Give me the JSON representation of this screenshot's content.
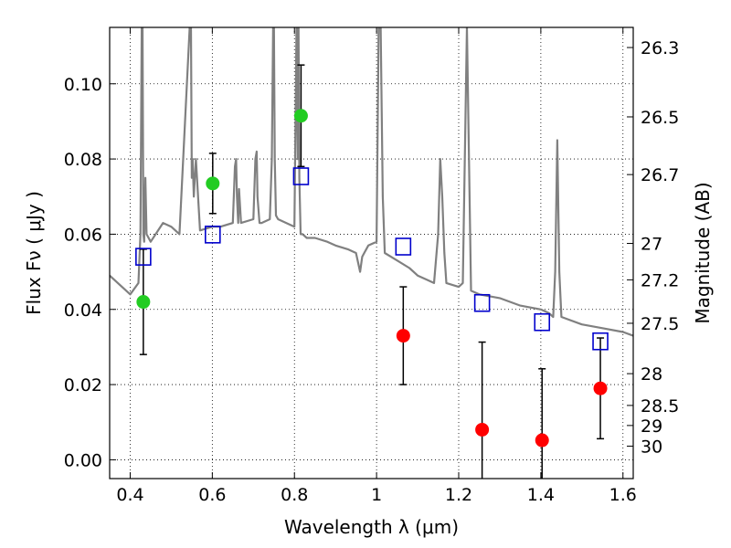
{
  "chart_data": {
    "type": "scatter",
    "xlabel": "Wavelength  λ (μm)",
    "ylabel": "Flux  Fν  ( μJy )",
    "ylabel_right": "Magnitude (AB)",
    "xlim": [
      0.35,
      1.625
    ],
    "ylim": [
      -0.005,
      0.115
    ],
    "grid": true,
    "x_ticks": [
      0.4,
      0.6,
      0.8,
      1.0,
      1.2,
      1.4,
      1.6
    ],
    "x_tick_labels": [
      "0.4",
      "0.6",
      "0.8",
      "1",
      "1.2",
      "1.4",
      "1.6"
    ],
    "y_ticks": [
      0.0,
      0.02,
      0.04,
      0.06,
      0.08,
      0.1
    ],
    "y_tick_labels": [
      "0.00",
      "0.02",
      "0.04",
      "0.06",
      "0.08",
      "0.10"
    ],
    "right_ticks": [
      26.3,
      26.5,
      26.7,
      27,
      27.2,
      27.5,
      28,
      28.5,
      29,
      30
    ],
    "right_tick_labels": [
      "26.3",
      "26.5",
      "26.7",
      "27",
      "27.2",
      "27.5",
      "28",
      "28.5",
      "29",
      "30"
    ],
    "series": [
      {
        "name": "model-spectrum",
        "kind": "line",
        "color": "#808080",
        "x": [
          0.35,
          0.38,
          0.4,
          0.42,
          0.425,
          0.428,
          0.43,
          0.432,
          0.434,
          0.437,
          0.44,
          0.45,
          0.48,
          0.5,
          0.52,
          0.545,
          0.548,
          0.55,
          0.552,
          0.555,
          0.56,
          0.57,
          0.6,
          0.62,
          0.65,
          0.655,
          0.658,
          0.66,
          0.663,
          0.665,
          0.67,
          0.7,
          0.705,
          0.708,
          0.71,
          0.715,
          0.72,
          0.74,
          0.745,
          0.748,
          0.75,
          0.752,
          0.755,
          0.76,
          0.78,
          0.8,
          0.805,
          0.808,
          0.81,
          0.812,
          0.815,
          0.82,
          0.83,
          0.85,
          0.88,
          0.9,
          0.93,
          0.95,
          0.96,
          0.965,
          0.97,
          0.98,
          1.0,
          1.005,
          1.01,
          1.015,
          1.02,
          1.05,
          1.08,
          1.1,
          1.12,
          1.14,
          1.15,
          1.155,
          1.16,
          1.165,
          1.17,
          1.2,
          1.21,
          1.22,
          1.23,
          1.25,
          1.3,
          1.35,
          1.4,
          1.42,
          1.43,
          1.435,
          1.44,
          1.445,
          1.45,
          1.5,
          1.55,
          1.6,
          1.625
        ],
        "y": [
          0.049,
          0.046,
          0.044,
          0.047,
          0.06,
          0.115,
          0.115,
          0.06,
          0.058,
          0.075,
          0.06,
          0.058,
          0.063,
          0.062,
          0.06,
          0.115,
          0.115,
          0.075,
          0.08,
          0.07,
          0.08,
          0.061,
          0.062,
          0.062,
          0.063,
          0.078,
          0.08,
          0.07,
          0.063,
          0.072,
          0.063,
          0.064,
          0.08,
          0.082,
          0.07,
          0.063,
          0.063,
          0.064,
          0.08,
          0.115,
          0.115,
          0.08,
          0.065,
          0.064,
          0.063,
          0.062,
          0.115,
          0.08,
          0.115,
          0.075,
          0.06,
          0.06,
          0.059,
          0.059,
          0.058,
          0.057,
          0.056,
          0.055,
          0.05,
          0.054,
          0.055,
          0.057,
          0.058,
          0.115,
          0.115,
          0.07,
          0.055,
          0.053,
          0.051,
          0.049,
          0.048,
          0.047,
          0.06,
          0.08,
          0.07,
          0.055,
          0.047,
          0.046,
          0.047,
          0.115,
          0.045,
          0.044,
          0.043,
          0.041,
          0.04,
          0.039,
          0.038,
          0.05,
          0.085,
          0.05,
          0.038,
          0.036,
          0.035,
          0.034,
          0.033
        ]
      },
      {
        "name": "model-photometry",
        "kind": "open-square",
        "color": "#0000cc",
        "x": [
          0.432,
          0.601,
          0.816,
          1.065,
          1.257,
          1.403,
          1.545
        ],
        "y": [
          0.054,
          0.0599,
          0.0754,
          0.0567,
          0.0417,
          0.0366,
          0.0315
        ]
      },
      {
        "name": "detections",
        "kind": "filled-circle",
        "color": "#22cc22",
        "x": [
          0.432,
          0.601,
          0.816
        ],
        "y": [
          0.042,
          0.0735,
          0.0915
        ],
        "yerr": [
          0.014,
          0.008,
          0.0135
        ]
      },
      {
        "name": "upper-limits",
        "kind": "filled-circle",
        "color": "#ff0000",
        "x": [
          1.065,
          1.257,
          1.403,
          1.545
        ],
        "y": [
          0.033,
          0.008,
          0.0052,
          0.019
        ],
        "yerr": [
          0.013,
          0.0233,
          0.019,
          0.0134
        ]
      }
    ]
  }
}
